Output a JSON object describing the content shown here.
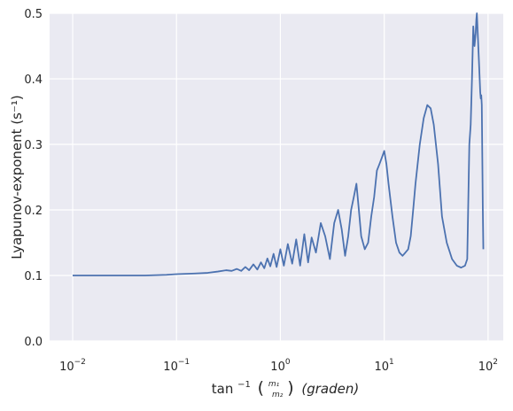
{
  "chart_data": {
    "type": "line",
    "xscale": "log",
    "xlim": [
      0.006,
      140
    ],
    "ylim": [
      0.0,
      0.5
    ],
    "grid": true,
    "ylabel": "Lyapunov-exponent (s⁻¹)",
    "xlabel": {
      "prefix": "tan",
      "sup": "−1",
      "lparen": "(",
      "num": "m₁",
      "den": "m₂",
      "rparen": ")",
      "unit": "(graden)"
    },
    "xticks": [
      {
        "value": 0.01,
        "base": "10",
        "exp": "−2"
      },
      {
        "value": 0.1,
        "base": "10",
        "exp": "−1"
      },
      {
        "value": 1,
        "base": "10",
        "exp": "0"
      },
      {
        "value": 10,
        "base": "10",
        "exp": "1"
      },
      {
        "value": 100,
        "base": "10",
        "exp": "2"
      }
    ],
    "yticks": [
      {
        "value": 0.0,
        "label": "0.0"
      },
      {
        "value": 0.1,
        "label": "0.1"
      },
      {
        "value": 0.2,
        "label": "0.2"
      },
      {
        "value": 0.3,
        "label": "0.3"
      },
      {
        "value": 0.4,
        "label": "0.4"
      },
      {
        "value": 0.5,
        "label": "0.5"
      }
    ],
    "series": [
      {
        "color": "#4c72b0",
        "x": [
          0.01,
          0.02,
          0.03,
          0.05,
          0.08,
          0.1,
          0.15,
          0.2,
          0.25,
          0.3,
          0.34,
          0.38,
          0.42,
          0.46,
          0.5,
          0.55,
          0.6,
          0.65,
          0.7,
          0.75,
          0.8,
          0.86,
          0.92,
          1.0,
          1.08,
          1.18,
          1.3,
          1.42,
          1.55,
          1.7,
          1.85,
          2.0,
          2.2,
          2.45,
          2.7,
          3.0,
          3.3,
          3.6,
          3.9,
          4.2,
          4.5,
          4.8,
          5.1,
          5.4,
          5.7,
          6.0,
          6.5,
          7.0,
          7.5,
          8.0,
          8.5,
          9.0,
          9.5,
          10.0,
          10.5,
          11.0,
          12.0,
          13.0,
          14.0,
          15.0,
          16.0,
          17.0,
          18.0,
          19.0,
          20.0,
          22.0,
          24.0,
          26.0,
          28.0,
          30.0,
          33.0,
          36.0,
          40.0,
          45.0,
          50.0,
          55.0,
          60.0,
          63.0,
          66.0,
          68.0,
          70.0,
          72.0,
          74.0,
          75.0,
          76.0,
          77.0,
          78.0,
          79.0,
          80.0,
          81.0,
          82.0,
          83.0,
          84.0,
          85.0,
          86.0,
          87.0,
          88.0,
          89.0,
          90.0
        ],
        "y": [
          0.1,
          0.1,
          0.1,
          0.1,
          0.101,
          0.102,
          0.103,
          0.104,
          0.106,
          0.108,
          0.107,
          0.11,
          0.107,
          0.113,
          0.108,
          0.117,
          0.109,
          0.12,
          0.111,
          0.126,
          0.114,
          0.133,
          0.113,
          0.14,
          0.115,
          0.148,
          0.118,
          0.155,
          0.115,
          0.163,
          0.12,
          0.158,
          0.135,
          0.18,
          0.16,
          0.125,
          0.18,
          0.2,
          0.17,
          0.13,
          0.16,
          0.2,
          0.22,
          0.24,
          0.2,
          0.16,
          0.14,
          0.15,
          0.19,
          0.22,
          0.26,
          0.27,
          0.28,
          0.29,
          0.27,
          0.24,
          0.19,
          0.15,
          0.135,
          0.13,
          0.135,
          0.14,
          0.16,
          0.2,
          0.24,
          0.3,
          0.34,
          0.36,
          0.355,
          0.33,
          0.27,
          0.19,
          0.15,
          0.125,
          0.115,
          0.112,
          0.115,
          0.125,
          0.3,
          0.33,
          0.4,
          0.48,
          0.45,
          0.46,
          0.47,
          0.49,
          0.5,
          0.48,
          0.46,
          0.44,
          0.42,
          0.4,
          0.38,
          0.37,
          0.375,
          0.36,
          0.28,
          0.2,
          0.14
        ]
      }
    ]
  }
}
